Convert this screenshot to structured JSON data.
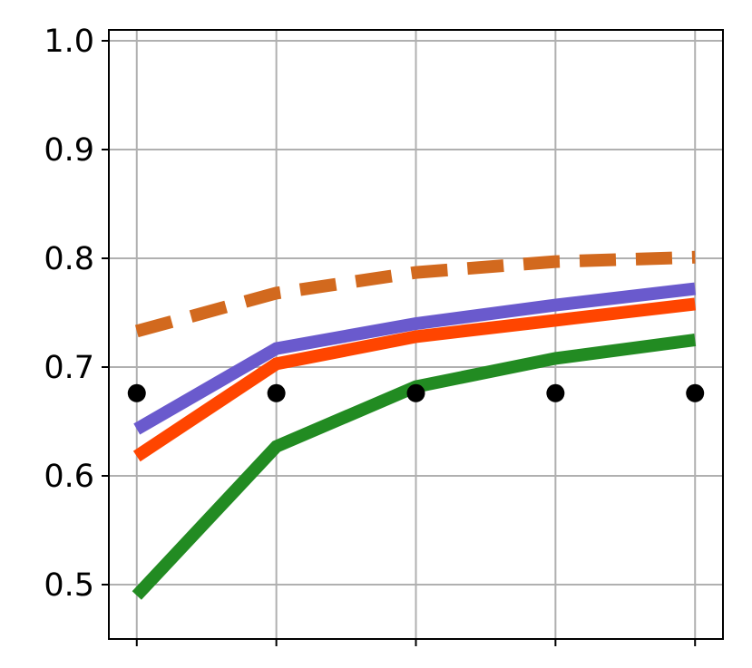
{
  "chart_data": {
    "type": "line",
    "title": "",
    "xlabel": "",
    "ylabel": "",
    "x": [
      0,
      1,
      2,
      3,
      4
    ],
    "xlim": [
      -0.2,
      4.2
    ],
    "ylim": [
      0.45,
      1.01
    ],
    "yticks": [
      0.5,
      0.6,
      0.7,
      0.8,
      0.9,
      1.0
    ],
    "ytick_labels": [
      "0.5",
      "0.6",
      "0.7",
      "0.8",
      "0.9",
      "1.0"
    ],
    "xtick_labels": [
      "",
      "",
      "",
      "",
      ""
    ],
    "grid": true,
    "legend": "none",
    "series": [
      {
        "values": [
          0.733,
          0.768,
          0.787,
          0.797,
          0.801
        ],
        "color": "#d2691e",
        "style": "dashed"
      },
      {
        "values": [
          0.643,
          0.717,
          0.74,
          0.757,
          0.772
        ],
        "color": "#6a5acd",
        "style": "solid"
      },
      {
        "values": [
          0.618,
          0.703,
          0.728,
          0.743,
          0.758
        ],
        "color": "#ff4500",
        "style": "solid"
      },
      {
        "values": [
          0.49,
          0.627,
          0.682,
          0.708,
          0.725
        ],
        "color": "#228b22",
        "style": "solid"
      },
      {
        "values": [
          0.676,
          0.676,
          0.676,
          0.676,
          0.676
        ],
        "color": "#000000",
        "style": "markers"
      }
    ]
  }
}
